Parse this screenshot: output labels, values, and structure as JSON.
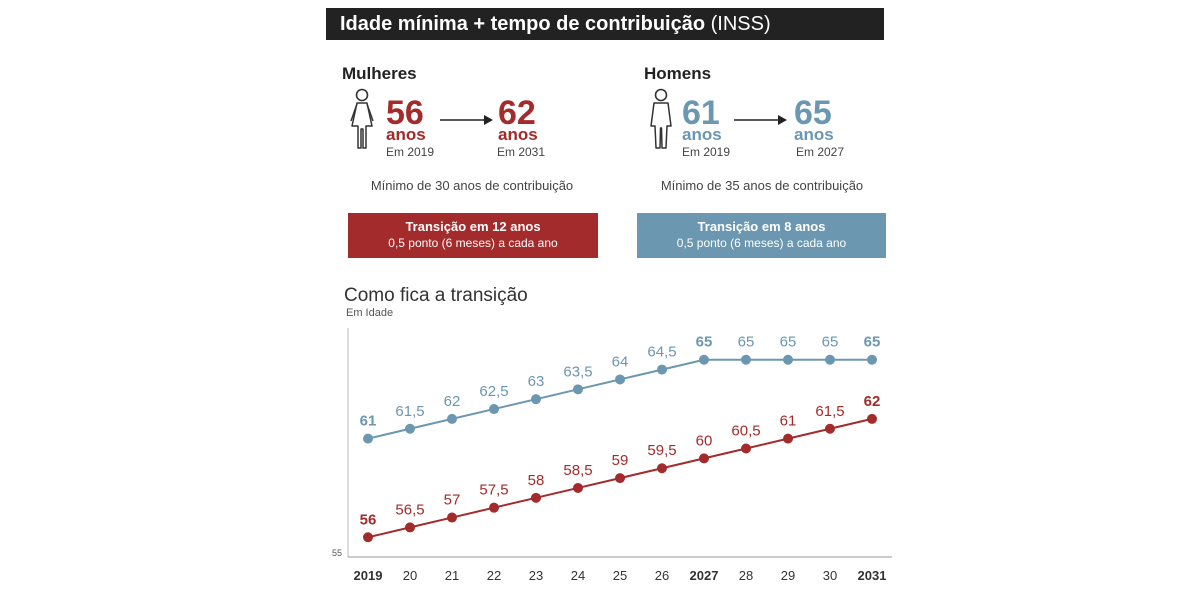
{
  "header": {
    "title_bold": "Idade mínima + tempo de contribuição",
    "title_regular": "(INSS)"
  },
  "women": {
    "heading": "Mulheres",
    "from_age": "56",
    "from_unit": "anos",
    "from_year": "Em 2019",
    "to_age": "62",
    "to_unit": "anos",
    "to_year": "Em 2031",
    "min_contribution": "Mínimo de 30 anos de contribuição",
    "transition_title": "Transição em 12 anos",
    "transition_detail": "0,5 ponto (6 meses) a cada ano",
    "icon": "woman-icon",
    "color": "#a32b2b"
  },
  "men": {
    "heading": "Homens",
    "from_age": "61",
    "from_unit": "anos",
    "from_year": "Em 2019",
    "to_age": "65",
    "to_unit": "anos",
    "to_year": "Em 2027",
    "min_contribution": "Mínimo de 35 anos de contribuição",
    "transition_title": "Transição em 8 anos",
    "transition_detail": "0,5 ponto (6 meses) a cada ano",
    "icon": "man-icon",
    "color": "#6b97b0"
  },
  "chart_data": {
    "type": "line",
    "title": "Como fica a transição",
    "ylabel": "Em Idade",
    "y_tick": "55",
    "ylim": [
      55,
      66
    ],
    "grid": false,
    "categories": [
      "2019",
      "20",
      "21",
      "22",
      "23",
      "24",
      "25",
      "26",
      "2027",
      "28",
      "29",
      "30",
      "2031"
    ],
    "bold_categories": [
      "2019",
      "2027",
      "2031"
    ],
    "series": [
      {
        "color": "#6b97b0",
        "values": [
          61,
          61.5,
          62,
          62.5,
          63,
          63.5,
          64,
          64.5,
          65,
          65,
          65,
          65,
          65
        ],
        "labels": [
          "61",
          "61,5",
          "62",
          "62,5",
          "63",
          "63,5",
          "64",
          "64,5",
          "65",
          "65",
          "65",
          "65",
          "65"
        ],
        "bold_labels": [
          "61",
          "65"
        ]
      },
      {
        "color": "#a32b2b",
        "values": [
          56,
          56.5,
          57,
          57.5,
          58,
          58.5,
          59,
          59.5,
          60,
          60.5,
          61,
          61.5,
          62
        ],
        "labels": [
          "56",
          "56,5",
          "57",
          "57,5",
          "58",
          "58,5",
          "59",
          "59,5",
          "60",
          "60,5",
          "61",
          "61,5",
          "62"
        ],
        "bold_labels": [
          "56",
          "62"
        ]
      }
    ]
  }
}
